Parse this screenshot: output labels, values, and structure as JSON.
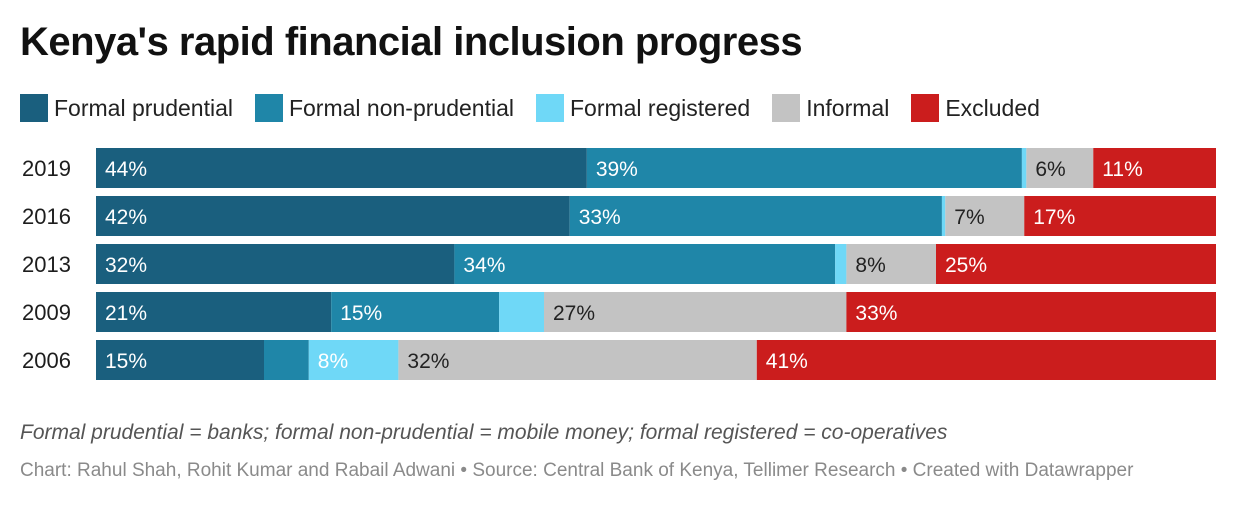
{
  "title": "Kenya's rapid financial inclusion progress",
  "note": "Formal prudential = banks; formal non-prudential = mobile money; formal registered = co-operatives",
  "credit": "Chart: Rahul Shah, Rohit Kumar and Rabail Adwani • Source: Central Bank of Kenya, Tellimer Research • Created with Datawrapper",
  "chart_data": {
    "type": "bar",
    "orientation": "horizontal",
    "stacked": true,
    "scale": "percent",
    "xlim": [
      0,
      100
    ],
    "legend": "top",
    "grid": false,
    "categories": [
      "2019",
      "2016",
      "2013",
      "2009",
      "2006"
    ],
    "series": [
      {
        "name": "Formal prudential",
        "color": "#1a5f7e",
        "values": [
          44,
          42,
          32,
          21,
          15
        ],
        "labels": [
          "44%",
          "42%",
          "32%",
          "21%",
          "15%"
        ]
      },
      {
        "name": "Formal non-prudential",
        "color": "#1f86a8",
        "values": [
          39,
          33,
          34,
          15,
          4
        ],
        "labels": [
          "39%",
          "33%",
          "34%",
          "15%",
          ""
        ]
      },
      {
        "name": "Formal registered",
        "color": "#6fd8f7",
        "values": [
          0.4,
          0.3,
          1,
          4,
          8
        ],
        "labels": [
          "",
          "",
          "",
          "",
          "8%"
        ]
      },
      {
        "name": "Informal",
        "color": "#c3c3c3",
        "values": [
          6,
          7,
          8,
          27,
          32
        ],
        "labels": [
          "6%",
          "7%",
          "8%",
          "27%",
          "32%"
        ]
      },
      {
        "name": "Excluded",
        "color": "#cb1d1d",
        "values": [
          11,
          17,
          25,
          33,
          41
        ],
        "labels": [
          "11%",
          "17%",
          "25%",
          "33%",
          "41%"
        ]
      }
    ]
  }
}
